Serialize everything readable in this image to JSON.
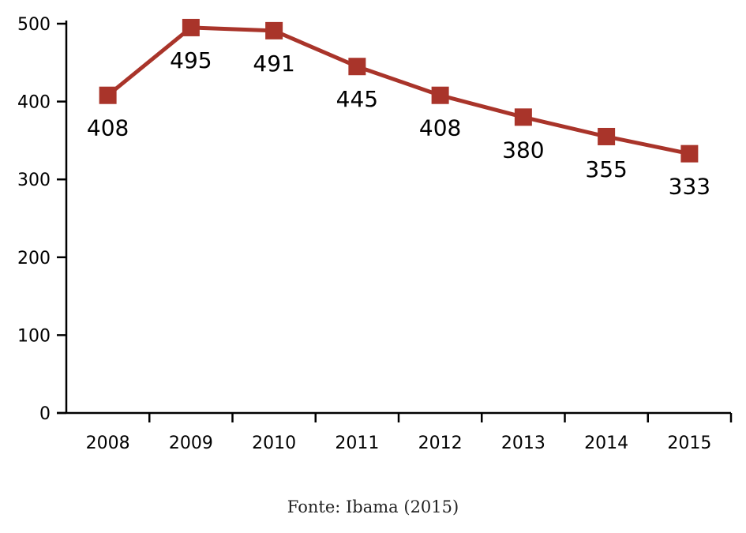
{
  "chart_data": {
    "type": "line",
    "title": "",
    "xlabel": "",
    "ylabel": "",
    "categories": [
      "2008",
      "2009",
      "2010",
      "2011",
      "2012",
      "2013",
      "2014",
      "2015"
    ],
    "series": [
      {
        "values": [
          408,
          495,
          491,
          445,
          408,
          380,
          355,
          333
        ],
        "color": "#a9342a",
        "marker": "square"
      }
    ],
    "data_labels": [
      "408",
      "495",
      "491",
      "445",
      "408",
      "380",
      "355",
      "333"
    ],
    "ylim": [
      0,
      500
    ],
    "yticks": [
      0,
      100,
      200,
      300,
      400,
      500
    ],
    "ytick_labels": [
      "0",
      "100",
      "200",
      "300",
      "400",
      "500"
    ],
    "grid": false,
    "legend": "none"
  },
  "source_note": "Fonte: Ibama (2015)"
}
